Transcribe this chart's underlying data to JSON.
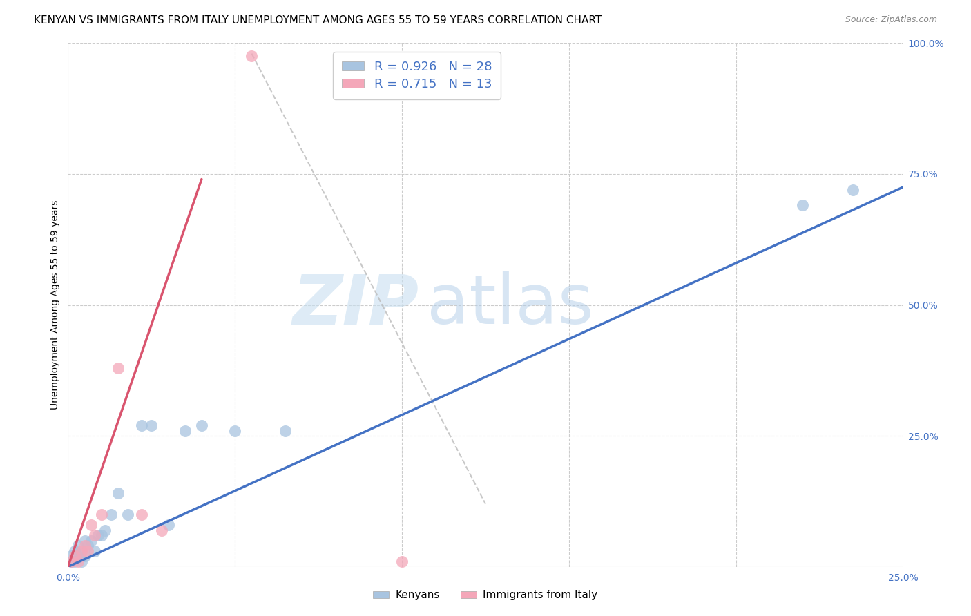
{
  "title": "KENYAN VS IMMIGRANTS FROM ITALY UNEMPLOYMENT AMONG AGES 55 TO 59 YEARS CORRELATION CHART",
  "source": "Source: ZipAtlas.com",
  "ylabel": "Unemployment Among Ages 55 to 59 years",
  "legend_label1": "Kenyans",
  "legend_label2": "Immigrants from Italy",
  "R1": 0.926,
  "N1": 28,
  "R2": 0.715,
  "N2": 13,
  "xlim": [
    0.0,
    0.25
  ],
  "ylim": [
    0.0,
    1.0
  ],
  "x_ticks": [
    0.0,
    0.05,
    0.1,
    0.15,
    0.2,
    0.25
  ],
  "x_tick_labels": [
    "0.0%",
    "",
    "",
    "",
    "",
    "25.0%"
  ],
  "y_ticks": [
    0.0,
    0.25,
    0.5,
    0.75,
    1.0
  ],
  "y_tick_labels": [
    "",
    "25.0%",
    "50.0%",
    "75.0%",
    "100.0%"
  ],
  "color_blue": "#a8c4e0",
  "color_pink": "#f4a7b9",
  "line_blue": "#4472c4",
  "line_pink": "#d9546e",
  "line_dashed": "#bbbbbb",
  "blue_scatter_x": [
    0.001,
    0.001,
    0.002,
    0.002,
    0.003,
    0.003,
    0.004,
    0.004,
    0.005,
    0.005,
    0.006,
    0.007,
    0.008,
    0.009,
    0.01,
    0.011,
    0.013,
    0.015,
    0.018,
    0.022,
    0.025,
    0.03,
    0.035,
    0.04,
    0.05,
    0.065,
    0.22,
    0.235
  ],
  "blue_scatter_y": [
    0.01,
    0.02,
    0.01,
    0.03,
    0.02,
    0.04,
    0.01,
    0.03,
    0.02,
    0.05,
    0.04,
    0.05,
    0.03,
    0.06,
    0.06,
    0.07,
    0.1,
    0.14,
    0.1,
    0.27,
    0.27,
    0.08,
    0.26,
    0.27,
    0.26,
    0.26,
    0.69,
    0.72
  ],
  "pink_scatter_x": [
    0.001,
    0.002,
    0.003,
    0.004,
    0.005,
    0.006,
    0.007,
    0.008,
    0.01,
    0.015,
    0.022,
    0.028,
    0.1
  ],
  "pink_scatter_y": [
    0.01,
    0.02,
    0.01,
    0.03,
    0.04,
    0.03,
    0.08,
    0.06,
    0.1,
    0.38,
    0.1,
    0.07,
    0.01
  ],
  "blue_line_x": [
    0.0,
    0.25
  ],
  "blue_line_y": [
    0.0,
    0.725
  ],
  "pink_line_x": [
    0.0,
    0.04
  ],
  "pink_line_y": [
    0.0,
    0.74
  ],
  "dashed_line_x": [
    0.055,
    0.125
  ],
  "dashed_line_y": [
    0.98,
    0.12
  ],
  "pink_outlier_x": [
    0.055
  ],
  "pink_outlier_y": [
    0.975
  ],
  "watermark_zip": "ZIP",
  "watermark_atlas": "atlas",
  "title_fontsize": 11,
  "label_fontsize": 10,
  "tick_fontsize": 10,
  "legend_fontsize": 13
}
